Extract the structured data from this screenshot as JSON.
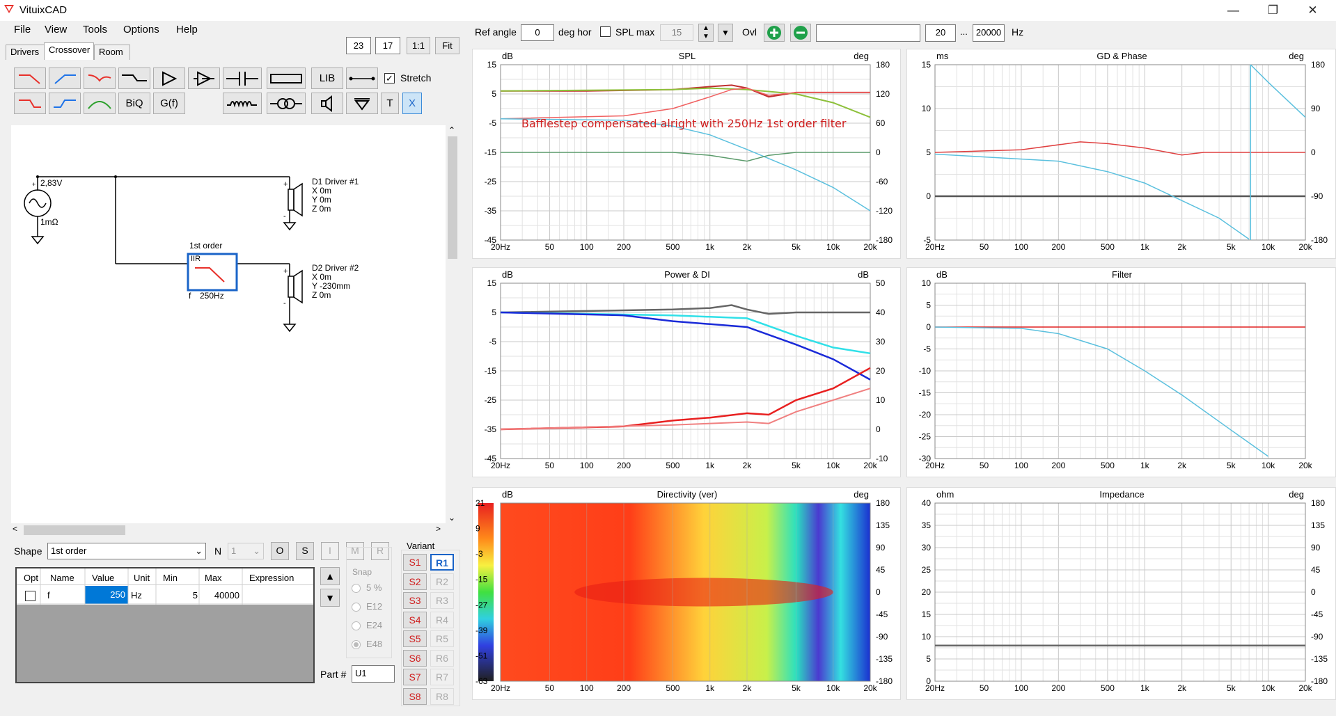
{
  "window": {
    "title": "VituixCAD"
  },
  "menu": [
    "File",
    "View",
    "Tools",
    "Options",
    "Help"
  ],
  "tabs": [
    "Drivers",
    "Crossover",
    "Room"
  ],
  "zoom": {
    "x": "23",
    "y": "17",
    "one_to_one": "1:1",
    "fit": "Fit"
  },
  "toolbar": {
    "lib": "LIB",
    "biq": "BiQ",
    "gf": "G(f)",
    "t": "T",
    "x": "X",
    "stretch": "Stretch",
    "stretch_checked": true
  },
  "schematic": {
    "source_voltage": "2,83V",
    "source_res": "1mΩ",
    "d1": {
      "name": "D1 Driver #1",
      "x": "X 0m",
      "y": "Y 0m",
      "z": "Z 0m"
    },
    "d2": {
      "name": "D2 Driver #2",
      "x": "X 0m",
      "y": "Y -230mm",
      "z": "Z 0m"
    },
    "filter": {
      "order_label": "1st order",
      "type": "IIR",
      "freq_label": "f",
      "freq": "250Hz"
    },
    "annotation": "Bafflestep compensated alright with 250Hz 1st order filter"
  },
  "shape": {
    "label": "Shape",
    "value": "1st order",
    "n_label": "N",
    "n_value": "1",
    "buttons": [
      "O",
      "S",
      "I",
      "M",
      "R"
    ]
  },
  "params_table": {
    "headers": [
      "Opt",
      "Name",
      "Value",
      "Unit",
      "Min",
      "Max",
      "Expression"
    ],
    "rows": [
      {
        "opt": "",
        "name": "f",
        "value": "250",
        "unit": "Hz",
        "min": "5",
        "max": "40000",
        "expression": ""
      }
    ]
  },
  "snap": {
    "label": "Snap",
    "options": [
      "5 %",
      "E12",
      "E24",
      "E48"
    ],
    "selected": "E48"
  },
  "part": {
    "label": "Part #",
    "value": "U1"
  },
  "variant": {
    "label": "Variant",
    "s": [
      "S1",
      "S2",
      "S3",
      "S4",
      "S5",
      "S6",
      "S7",
      "S8"
    ],
    "r": [
      "R1",
      "R2",
      "R3",
      "R4",
      "R5",
      "R6",
      "R7",
      "R8"
    ],
    "active_r": "R1"
  },
  "topbar": {
    "ref_angle_label": "Ref angle",
    "ref_angle": "0",
    "deg_hor": "deg hor",
    "spl_max_label": "SPL max",
    "spl_max": "15",
    "ovl": "Ovl",
    "freq_from": "20",
    "dots": "...",
    "freq_to": "20000",
    "hz": "Hz"
  },
  "x_ticks": [
    "20Hz",
    "50",
    "100",
    "200",
    "500",
    "1k",
    "2k",
    "5k",
    "10k",
    "20k"
  ],
  "charts": {
    "spl": {
      "title": "SPL",
      "left_unit": "dB",
      "right_unit": "deg",
      "left": [
        "15",
        "5",
        "-5",
        "-15",
        "-25",
        "-35",
        "-45"
      ],
      "right": [
        "180",
        "120",
        "60",
        "0",
        "-60",
        "-120",
        "-180"
      ]
    },
    "gd": {
      "title": "GD & Phase",
      "left_unit": "ms",
      "right_unit": "deg",
      "left": [
        "15",
        "10",
        "5",
        "0",
        "-5"
      ],
      "right": [
        "180",
        "90",
        "0",
        "-90",
        "-180"
      ]
    },
    "power": {
      "title": "Power & DI",
      "left_unit": "dB",
      "right_unit": "dB",
      "left": [
        "15",
        "5",
        "-5",
        "-15",
        "-25",
        "-35",
        "-45"
      ],
      "right": [
        "50",
        "40",
        "30",
        "20",
        "10",
        "0",
        "-10"
      ]
    },
    "filter": {
      "title": "Filter",
      "left_unit": "dB",
      "left": [
        "10",
        "5",
        "0",
        "-5",
        "-10",
        "-15",
        "-20",
        "-25",
        "-30"
      ]
    },
    "directivity": {
      "title": "Directivity (ver)",
      "left_unit": "dB",
      "right_unit": "deg",
      "left": [
        "21",
        "9",
        "-3",
        "-15",
        "-27",
        "-39",
        "-51",
        "-63"
      ],
      "right": [
        "180",
        "135",
        "90",
        "45",
        "0",
        "-45",
        "-90",
        "-135",
        "-180"
      ]
    },
    "impedance": {
      "title": "Impedance",
      "left_unit": "ohm",
      "right_unit": "deg",
      "left": [
        "40",
        "35",
        "30",
        "25",
        "20",
        "15",
        "10",
        "5",
        "0"
      ],
      "right": [
        "180",
        "135",
        "90",
        "45",
        "0",
        "-45",
        "-90",
        "-135",
        "-180"
      ]
    }
  },
  "colors": {
    "red": "#e8302a",
    "blue": "#1e73e8",
    "green": "#2ca02c",
    "cyan": "#5bc0de",
    "accent": "#1a64c8"
  }
}
